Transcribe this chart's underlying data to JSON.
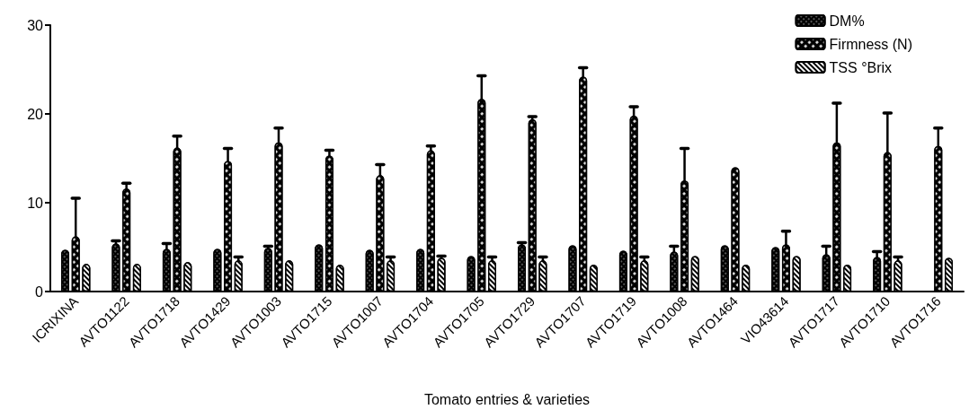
{
  "chart_data": {
    "type": "bar",
    "xlabel": "Tomato entries & varieties",
    "categories": [
      "ICRIXINA",
      "AVTO1122",
      "AVTO1718",
      "AVTO1429",
      "AVTO1003",
      "AVTO1715",
      "AVTO1007",
      "AVTO1704",
      "AVTO1705",
      "AVTO1729",
      "AVTO1707",
      "AVTO1719",
      "AVTO1008",
      "AVTO1464",
      "VIO43614",
      "AVTO1717",
      "AVTO1710",
      "AVTO1716"
    ],
    "series": [
      {
        "name": "DM%",
        "color": "#000000",
        "values": [
          4.7,
          5.4,
          4.8,
          4.8,
          4.9,
          5.3,
          4.7,
          4.8,
          4.0,
          5.3,
          5.2,
          4.6,
          4.5,
          5.2,
          5.0,
          4.2,
          3.9,
          null
        ],
        "errors": [
          null,
          0.3,
          0.6,
          null,
          0.2,
          null,
          null,
          null,
          null,
          0.2,
          null,
          null,
          0.6,
          null,
          null,
          0.9,
          0.6,
          null
        ]
      },
      {
        "name": "Firmness (N)",
        "color": "#000000",
        "values": [
          6.2,
          11.6,
          16.2,
          14.7,
          16.8,
          15.3,
          13.1,
          15.9,
          21.7,
          19.4,
          24.2,
          19.8,
          12.5,
          14.0,
          5.3,
          16.8,
          15.7,
          16.4
        ],
        "errors": [
          4.3,
          0.6,
          1.3,
          1.4,
          1.6,
          0.6,
          1.2,
          0.5,
          2.6,
          0.3,
          1.0,
          1.0,
          3.6,
          null,
          1.5,
          4.4,
          4.4,
          2.0
        ]
      },
      {
        "name": "TSS °Brix",
        "color": "#000000",
        "values": [
          3.1,
          3.1,
          3.3,
          3.5,
          3.5,
          3.0,
          3.5,
          3.8,
          3.5,
          3.5,
          3.0,
          3.5,
          4.0,
          3.0,
          4.0,
          3.0,
          3.5,
          3.8
        ],
        "errors": [
          null,
          null,
          null,
          0.4,
          null,
          null,
          0.4,
          0.2,
          0.4,
          0.4,
          null,
          0.4,
          null,
          null,
          null,
          null,
          0.4,
          null
        ]
      }
    ],
    "ylim": [
      0,
      30
    ],
    "yticks": [
      0,
      10,
      20,
      30
    ],
    "grid": false,
    "legend": "top right"
  }
}
